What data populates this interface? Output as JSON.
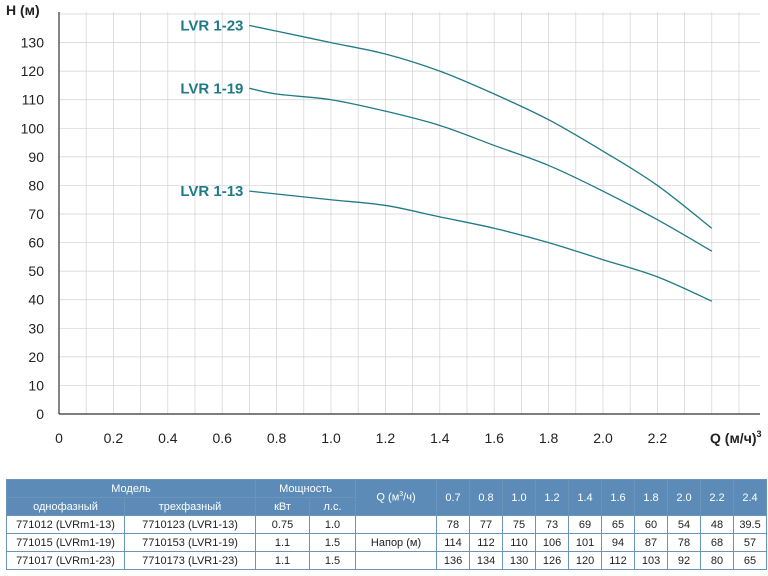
{
  "chart_data": {
    "type": "line",
    "ylabel": "H (м)",
    "xlabel": "Q (м/ч)",
    "xlabel_sup": "3",
    "xlim": [
      0,
      2.55
    ],
    "ylim": [
      0,
      140
    ],
    "x_ticks": [
      "0",
      "0.2",
      "0.4",
      "0.6",
      "0.8",
      "1.0",
      "1.2",
      "1.4",
      "1.6",
      "1.8",
      "2.0",
      "2.2"
    ],
    "y_ticks": [
      "0",
      "10",
      "20",
      "30",
      "40",
      "50",
      "60",
      "70",
      "80",
      "90",
      "100",
      "110",
      "120",
      "130"
    ],
    "grid": true,
    "x": [
      0.7,
      0.8,
      1.0,
      1.2,
      1.4,
      1.6,
      1.8,
      2.0,
      2.2,
      2.4
    ],
    "series": [
      {
        "name": "LVR 1-23",
        "values": [
          136,
          134,
          130,
          126,
          120,
          112,
          103,
          92,
          80,
          65
        ]
      },
      {
        "name": "LVR 1-19",
        "values": [
          114,
          112,
          110,
          106,
          101,
          94,
          87,
          78,
          68,
          57
        ]
      },
      {
        "name": "LVR 1-13",
        "values": [
          78,
          77,
          75,
          73,
          69,
          65,
          60,
          54,
          48,
          39.5
        ]
      }
    ]
  },
  "table": {
    "header": {
      "model": "Модель",
      "power": "Мощность",
      "single_phase": "однофазный",
      "three_phase": "трехфазный",
      "kw": "кВт",
      "hp": "л.с.",
      "q_label": "Q (м",
      "q_sup": "3",
      "q_suffix": "/ч)",
      "q_values": [
        "0.7",
        "0.8",
        "1.0",
        "1.2",
        "1.4",
        "1.6",
        "1.8",
        "2.0",
        "2.2",
        "2.4"
      ]
    },
    "head_label": "Напор (м)",
    "rows": [
      {
        "single": "771012 (LVRm1-13)",
        "three": "7710123 (LVR1-13)",
        "kw": "0.75",
        "hp": "1.0",
        "heads": [
          "78",
          "77",
          "75",
          "73",
          "69",
          "65",
          "60",
          "54",
          "48",
          "39.5"
        ]
      },
      {
        "single": "771015 (LVRm1-19)",
        "three": "7710153 (LVR1-19)",
        "kw": "1.1",
        "hp": "1.5",
        "heads": [
          "114",
          "112",
          "110",
          "106",
          "101",
          "94",
          "87",
          "78",
          "68",
          "57"
        ]
      },
      {
        "single": "771017 (LVRm1-23)",
        "three": "7710173 (LVR1-23)",
        "kw": "1.1",
        "hp": "1.5",
        "heads": [
          "136",
          "134",
          "130",
          "126",
          "120",
          "112",
          "103",
          "92",
          "80",
          "65"
        ]
      }
    ]
  },
  "colors": {
    "curve": "#1f7a87",
    "grid": "#d2d2d2",
    "table_header": "#5b8bb6"
  }
}
